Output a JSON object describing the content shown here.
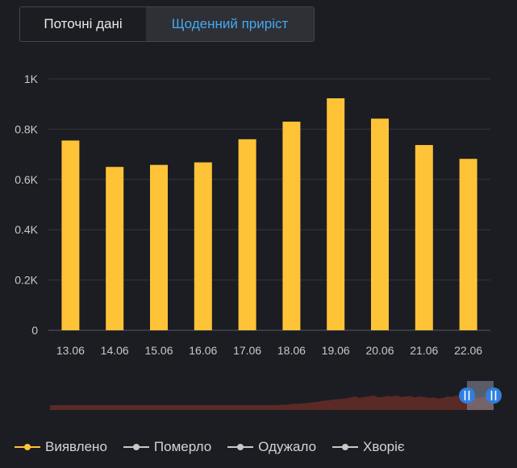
{
  "tabs": [
    {
      "label": "Поточні дані",
      "active": false
    },
    {
      "label": "Щоденний приріст",
      "active": true
    }
  ],
  "colors": {
    "bar": "#fec337",
    "active_tab_text": "#45a8f0",
    "navigator_fill": "#5a2a26",
    "handle": "#2f7fe0"
  },
  "legend": [
    {
      "label": "Виявлено",
      "color": "#fec337",
      "active": true
    },
    {
      "label": "Померло",
      "color": "#c8c8c8",
      "active": false
    },
    {
      "label": "Одужало",
      "color": "#c8c8c8",
      "active": false
    },
    {
      "label": "Хворіє",
      "color": "#c8c8c8",
      "active": false
    }
  ],
  "chart_data": {
    "type": "bar",
    "categories": [
      "13.06",
      "14.06",
      "15.06",
      "16.06",
      "17.06",
      "18.06",
      "19.06",
      "20.06",
      "21.06",
      "22.06"
    ],
    "series": [
      {
        "name": "Виявлено",
        "values": [
          755,
          650,
          658,
          668,
          760,
          830,
          923,
          842,
          737,
          682
        ]
      }
    ],
    "y_ticks": [
      "0",
      "0.2K",
      "0.4K",
      "0.6K",
      "0.8K",
      "1K"
    ],
    "y_tick_values": [
      0,
      200,
      400,
      600,
      800,
      1000
    ],
    "ylim": [
      0,
      1000
    ],
    "grid": true,
    "legend_position": "bottom-left",
    "navigator": {
      "series_shape": [
        0,
        0,
        0,
        0,
        0,
        0,
        0,
        0,
        0,
        0,
        0,
        0,
        0,
        0,
        0,
        0,
        0,
        0,
        0,
        0,
        0,
        0,
        0,
        0,
        0,
        0,
        0,
        0,
        0,
        0,
        0,
        0,
        0,
        0,
        0,
        0,
        0,
        0,
        0,
        0,
        0,
        0,
        0,
        0,
        0,
        0,
        0,
        0,
        0,
        0,
        0.05,
        0.05,
        0.1,
        0.15,
        0.15,
        0.2,
        0.25,
        0.3,
        0.35,
        0.45,
        0.5,
        0.55,
        0.6,
        0.65,
        0.7,
        0.8,
        0.9,
        0.75,
        0.85,
        0.9,
        1.0,
        0.8,
        0.85,
        0.95,
        0.9,
        1.0,
        0.85,
        0.9,
        0.95,
        0.8,
        0.9,
        0.85,
        0.75,
        0.8,
        0.7,
        0.75,
        0.9,
        0.85,
        1.0,
        0.9,
        0.85,
        0.8,
        0.75,
        0.8,
        0.85,
        0.9,
        0.8
      ],
      "selection": [
        0.94,
        1.0
      ]
    }
  }
}
